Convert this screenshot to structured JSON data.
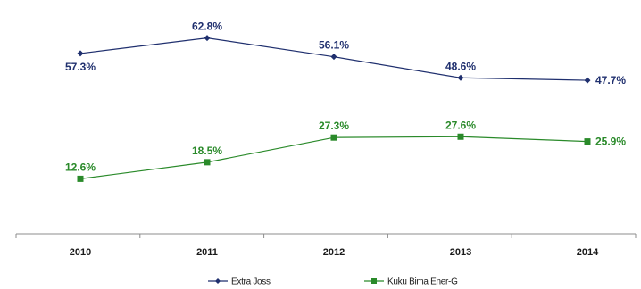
{
  "chart_data": {
    "type": "line",
    "categories": [
      "2010",
      "2011",
      "2012",
      "2013",
      "2014"
    ],
    "series": [
      {
        "name": "Extra Joss",
        "color": "#1f2f6e",
        "marker": "diamond",
        "values": [
          57.3,
          62.8,
          56.1,
          48.6,
          47.7
        ],
        "labels": [
          "57.3%",
          "62.8%",
          "56.1%",
          "48.6%",
          "47.7%"
        ],
        "label_position": [
          "below",
          "above",
          "above",
          "above",
          "right"
        ]
      },
      {
        "name": "Kuku Bima Ener-G",
        "color": "#2a8a2a",
        "marker": "square",
        "values": [
          12.6,
          18.5,
          27.3,
          27.6,
          25.9
        ],
        "labels": [
          "12.6%",
          "18.5%",
          "27.3%",
          "27.6%",
          "25.9%"
        ],
        "label_position": [
          "above",
          "above",
          "above",
          "above",
          "right"
        ]
      }
    ],
    "title": "",
    "xlabel": "",
    "ylabel": "",
    "ylim": [
      0,
      70
    ],
    "grid": false,
    "y_axis_visible": false,
    "legend_position": "bottom"
  }
}
